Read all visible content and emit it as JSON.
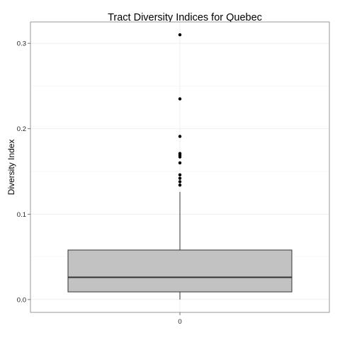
{
  "chart_data": {
    "type": "boxplot",
    "title": "Tract Diversity Indices for Quebec",
    "xlabel": "",
    "ylabel": "Diversity Index",
    "categories": [
      "0"
    ],
    "ylim": [
      -0.015,
      0.325
    ],
    "yticks": [
      0.0,
      0.1,
      0.2,
      0.3
    ],
    "ytick_labels": [
      "0.0",
      "0.1",
      "0.2",
      "0.3"
    ],
    "grid": true,
    "boxes": [
      {
        "category": "0",
        "min": 0.0,
        "q1": 0.009,
        "median": 0.026,
        "q3": 0.058,
        "whisker_high": 0.126,
        "outliers": [
          0.134,
          0.138,
          0.142,
          0.146,
          0.16,
          0.167,
          0.169,
          0.171,
          0.191,
          0.235,
          0.31
        ]
      }
    ],
    "colors": {
      "box_fill": "#c2c2c2",
      "box_stroke": "#333333",
      "panel_border": "#9a9a9a",
      "grid_major": "#ebebeb",
      "grid_minor": "#f5f5f5",
      "point": "#000000"
    }
  }
}
